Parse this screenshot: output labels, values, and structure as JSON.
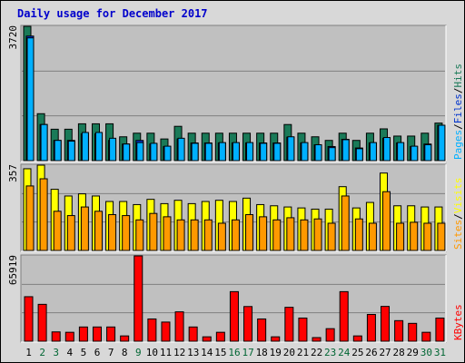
{
  "chart_data": {
    "type": "bar",
    "title": "Daily usage for December 2017",
    "categories": [
      "1",
      "2",
      "3",
      "4",
      "5",
      "6",
      "7",
      "8",
      "9",
      "10",
      "11",
      "12",
      "13",
      "14",
      "15",
      "16",
      "17",
      "18",
      "19",
      "20",
      "21",
      "22",
      "23",
      "24",
      "25",
      "26",
      "27",
      "28",
      "29",
      "30",
      "31"
    ],
    "weekend_days": [
      "2",
      "3",
      "9",
      "16",
      "17",
      "23",
      "24",
      "30",
      "31"
    ],
    "colors": {
      "hits": "#1a7a58",
      "files": "#0033cc",
      "pages": "#00b0ff",
      "visits": "#ffff00",
      "sites": "#ff9900",
      "kbytes": "#ff0000",
      "weekday_label": "#000000",
      "weekend_label": "#006633",
      "title": "#0000cc",
      "background": "#d8d8d8",
      "plot_background": "#c0c0c0"
    },
    "panels": [
      {
        "name": "hits_files_pages",
        "scale_max_label": "3720",
        "ylim": [
          0,
          3720
        ],
        "legend": [
          "Pages",
          "/",
          "Files",
          "/",
          "Hits"
        ],
        "series": [
          {
            "name": "Hits",
            "values": [
              3720,
              1300,
              870,
              870,
              1020,
              1020,
              1020,
              660,
              760,
              760,
              600,
              950,
              760,
              760,
              760,
              760,
              760,
              760,
              760,
              1000,
              760,
              660,
              560,
              760,
              560,
              760,
              880,
              680,
              680,
              760,
              1040
            ]
          },
          {
            "name": "Files",
            "values": [
              3450,
              1000,
              560,
              560,
              740,
              740,
              560,
              460,
              560,
              460,
              390,
              600,
              490,
              490,
              490,
              490,
              490,
              490,
              490,
              650,
              490,
              440,
              390,
              590,
              350,
              490,
              620,
              490,
              390,
              460,
              980
            ]
          },
          {
            "name": "Pages",
            "values": [
              3400,
              1000,
              560,
              540,
              780,
              780,
              620,
              460,
              500,
              480,
              400,
              620,
              480,
              480,
              500,
              500,
              500,
              480,
              480,
              660,
              500,
              440,
              360,
              580,
              330,
              500,
              640,
              500,
              400,
              440,
              980
            ]
          }
        ]
      },
      {
        "name": "visits_sites",
        "scale_max_label": "357",
        "ylim": [
          0,
          357
        ],
        "legend": [
          "Sites",
          "/",
          "Visits"
        ],
        "series": [
          {
            "name": "Visits",
            "values": [
              342,
              357,
              256,
              228,
              237,
              228,
              205,
              205,
              192,
              214,
              196,
              210,
              196,
              205,
              210,
              205,
              219,
              192,
              187,
              182,
              178,
              173,
              173,
              267,
              178,
              201,
              324,
              187,
              187,
              182,
              182
            ]
          },
          {
            "name": "Sites",
            "values": [
              270,
              300,
              164,
              146,
              182,
              164,
              150,
              146,
              128,
              155,
              141,
              128,
              128,
              128,
              114,
              128,
              150,
              141,
              128,
              137,
              128,
              132,
              114,
              228,
              132,
              114,
              246,
              114,
              118,
              114,
              114
            ]
          }
        ]
      },
      {
        "name": "kbytes",
        "scale_max_label": "65919",
        "ylim": [
          0,
          65919
        ],
        "legend": [
          "KBytes"
        ],
        "series": [
          {
            "name": "KBytes",
            "values": [
              34400,
              28500,
              7200,
              6900,
              11000,
              11000,
              11000,
              4100,
              65919,
              17200,
              14800,
              22700,
              11000,
              3400,
              6900,
              38300,
              26800,
              17200,
              3400,
              26200,
              17900,
              2800,
              9700,
              38300,
              4100,
              20700,
              26900,
              15900,
              13800,
              6900,
              17900
            ]
          }
        ]
      }
    ]
  }
}
